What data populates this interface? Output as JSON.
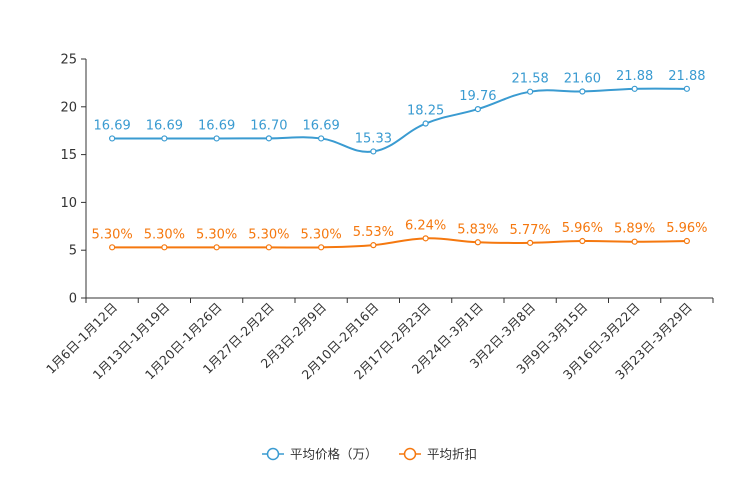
{
  "chart_data": {
    "type": "line",
    "title": "",
    "xlabel": "",
    "ylabel": "",
    "ylim": [
      0,
      25
    ],
    "yticks": [
      0,
      5,
      10,
      15,
      20,
      25
    ],
    "grid": false,
    "legend_position": "bottom",
    "categories": [
      "1月6日-1月12日",
      "1月13日-1月19日",
      "1月20日-1月26日",
      "1月27日-2月2日",
      "2月3日-2月9日",
      "2月10日-2月16日",
      "2月17日-2月23日",
      "2月24日-3月1日",
      "3月2日-3月8日",
      "3月9日-3月15日",
      "3月16日-3月22日",
      "3月23日-3月29日"
    ],
    "series": [
      {
        "name": "平均价格（万）",
        "color": "#3a9bd1",
        "values": [
          16.69,
          16.69,
          16.69,
          16.7,
          16.69,
          15.33,
          18.25,
          19.76,
          21.58,
          21.6,
          21.88,
          21.88
        ],
        "labels": [
          "16.69",
          "16.69",
          "16.69",
          "16.70",
          "16.69",
          "15.33",
          "18.25",
          "19.76",
          "21.58",
          "21.60",
          "21.88",
          "21.88"
        ]
      },
      {
        "name": "平均折扣",
        "color": "#f5780f",
        "values": [
          5.3,
          5.3,
          5.3,
          5.3,
          5.3,
          5.53,
          6.24,
          5.83,
          5.77,
          5.96,
          5.89,
          5.96
        ],
        "labels": [
          "5.30%",
          "5.30%",
          "5.30%",
          "5.30%",
          "5.30%",
          "5.53%",
          "6.24%",
          "5.83%",
          "5.77%",
          "5.96%",
          "5.89%",
          "5.96%"
        ]
      }
    ]
  }
}
